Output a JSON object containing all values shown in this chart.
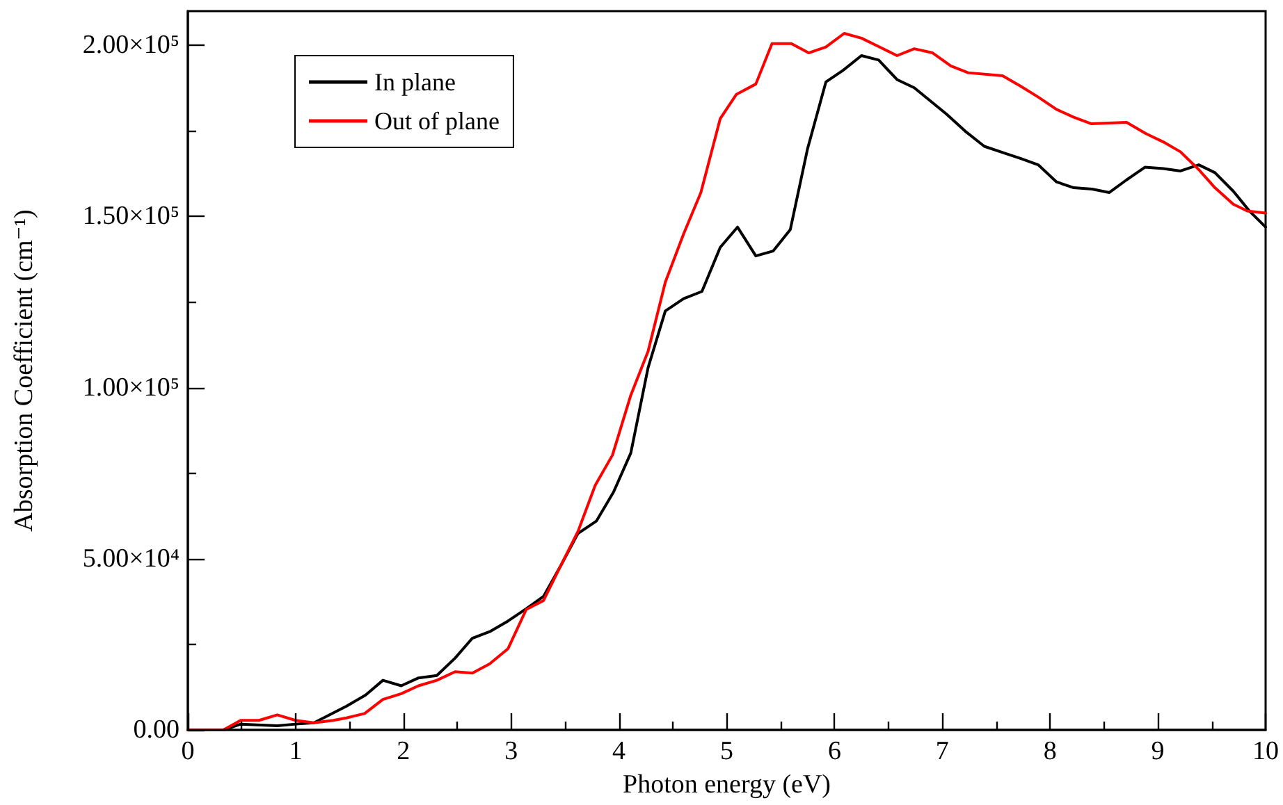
{
  "chart_data": {
    "type": "line",
    "xlabel": "Photon energy (eV)",
    "ylabel": "Absorption Coefficient (cm⁻¹)",
    "xlim": [
      0,
      10
    ],
    "xticks": [
      0,
      {
        "value": 0.5,
        "label": null
      },
      1,
      {
        "value": 1.5,
        "label": null
      },
      2,
      {
        "value": 2.5,
        "label": null
      },
      3,
      {
        "value": 3.5,
        "label": null
      },
      4,
      {
        "value": 4.5,
        "label": null
      },
      5,
      {
        "value": 5.5,
        "label": null
      },
      6,
      {
        "value": 6.5,
        "label": null
      },
      7,
      {
        "value": 7.5,
        "label": null
      },
      8,
      {
        "value": 8.5,
        "label": null
      },
      9,
      {
        "value": 9.5,
        "label": null
      },
      10
    ],
    "ylim": [
      0,
      210000
    ],
    "yticks": [
      {
        "value": 0,
        "label": "0.00"
      },
      {
        "value": 25000,
        "label": null
      },
      {
        "value": 50000,
        "label": "5.00×10⁴"
      },
      {
        "value": 75000,
        "label": null
      },
      {
        "value": 100000,
        "label": "1.00×10⁵"
      },
      {
        "value": 125000,
        "label": null
      },
      {
        "value": 150000,
        "label": "1.50×10⁵"
      },
      {
        "value": 175000,
        "label": null
      },
      {
        "value": 200000,
        "label": "2.00×10⁵"
      }
    ],
    "legend": "top left",
    "series": [
      {
        "name": "In plane",
        "color": "#000000",
        "x": [
          0,
          0.33,
          0.49,
          0.83,
          1.0,
          1.17,
          1.47,
          1.65,
          1.81,
          1.98,
          2.14,
          2.31,
          2.48,
          2.64,
          2.8,
          2.97,
          3.14,
          3.3,
          3.46,
          3.62,
          3.79,
          3.95,
          4.11,
          4.27,
          4.43,
          4.6,
          4.77,
          4.94,
          5.1,
          5.27,
          5.43,
          5.59,
          5.75,
          5.92,
          6.08,
          6.25,
          6.41,
          6.58,
          6.74,
          7.04,
          7.21,
          7.39,
          7.56,
          7.73,
          7.89,
          8.06,
          8.22,
          8.39,
          8.55,
          8.71,
          8.88,
          9.05,
          9.21,
          9.38,
          9.53,
          9.7,
          9.85,
          10.0
        ],
        "values": [
          0,
          0,
          1700,
          1200,
          1700,
          2100,
          6900,
          10200,
          14500,
          12900,
          15200,
          15900,
          21000,
          26800,
          28700,
          31800,
          35400,
          39000,
          48000,
          57400,
          61000,
          69500,
          80900,
          105800,
          122400,
          126000,
          128100,
          141000,
          146900,
          138500,
          139900,
          146200,
          169800,
          189300,
          192700,
          197000,
          195700,
          190000,
          187600,
          179900,
          175000,
          170500,
          168700,
          166900,
          165100,
          160100,
          158400,
          158000,
          157000,
          160700,
          164400,
          164000,
          163300,
          165100,
          162800,
          157400,
          151600,
          146900
        ]
      },
      {
        "name": "Out of plane",
        "color": "#ff0000",
        "x": [
          0,
          0.33,
          0.49,
          0.66,
          0.83,
          1.0,
          1.17,
          1.35,
          1.47,
          1.64,
          1.81,
          1.98,
          2.14,
          2.31,
          2.48,
          2.64,
          2.8,
          2.97,
          3.14,
          3.3,
          3.46,
          3.62,
          3.78,
          3.94,
          4.11,
          4.27,
          4.43,
          4.6,
          4.76,
          4.94,
          5.09,
          5.27,
          5.42,
          5.6,
          5.76,
          5.92,
          6.09,
          6.25,
          6.42,
          6.58,
          6.74,
          6.91,
          7.08,
          7.24,
          7.56,
          7.73,
          7.89,
          8.06,
          8.22,
          8.38,
          8.71,
          8.89,
          9.05,
          9.21,
          9.38,
          9.53,
          9.7,
          9.83,
          10.0
        ],
        "values": [
          0,
          0,
          2800,
          2800,
          4400,
          2800,
          2100,
          2800,
          3500,
          4800,
          8900,
          10600,
          12900,
          14500,
          17000,
          16600,
          19300,
          23700,
          35200,
          37800,
          48000,
          58000,
          71500,
          80300,
          97800,
          110600,
          130800,
          144900,
          157000,
          178600,
          185700,
          188700,
          200500,
          200500,
          197800,
          199500,
          203500,
          202100,
          199500,
          197000,
          199000,
          197800,
          194000,
          192000,
          191100,
          188000,
          184900,
          181300,
          179000,
          177100,
          177500,
          174200,
          171800,
          168900,
          163700,
          158400,
          153600,
          151600,
          151000
        ]
      }
    ]
  }
}
